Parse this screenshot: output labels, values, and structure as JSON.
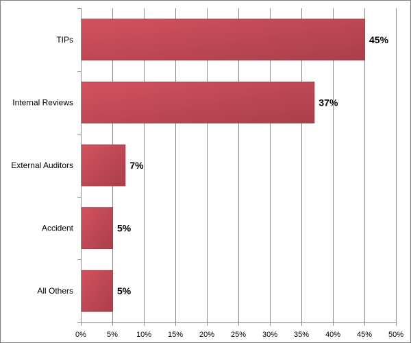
{
  "chart_data": {
    "type": "bar",
    "orientation": "horizontal",
    "categories": [
      "TIPs",
      "Internal Reviews",
      "External Auditors",
      "Accident",
      "All Others"
    ],
    "values": [
      45,
      37,
      7,
      5,
      5
    ],
    "data_labels": [
      "45%",
      "37%",
      "7%",
      "5%",
      "5%"
    ],
    "xlim": [
      0,
      50
    ],
    "x_ticks": [
      0,
      5,
      10,
      15,
      20,
      25,
      30,
      35,
      40,
      45,
      50
    ],
    "x_tick_labels": [
      "0%",
      "5%",
      "10%",
      "15%",
      "20%",
      "25%",
      "30%",
      "35%",
      "40%",
      "45%",
      "50%"
    ],
    "grid": true,
    "legend": "none",
    "colors": {
      "bar_light": "#d4515f",
      "bar_dark": "#a93f4b",
      "grid": "#8c8c8c"
    }
  }
}
